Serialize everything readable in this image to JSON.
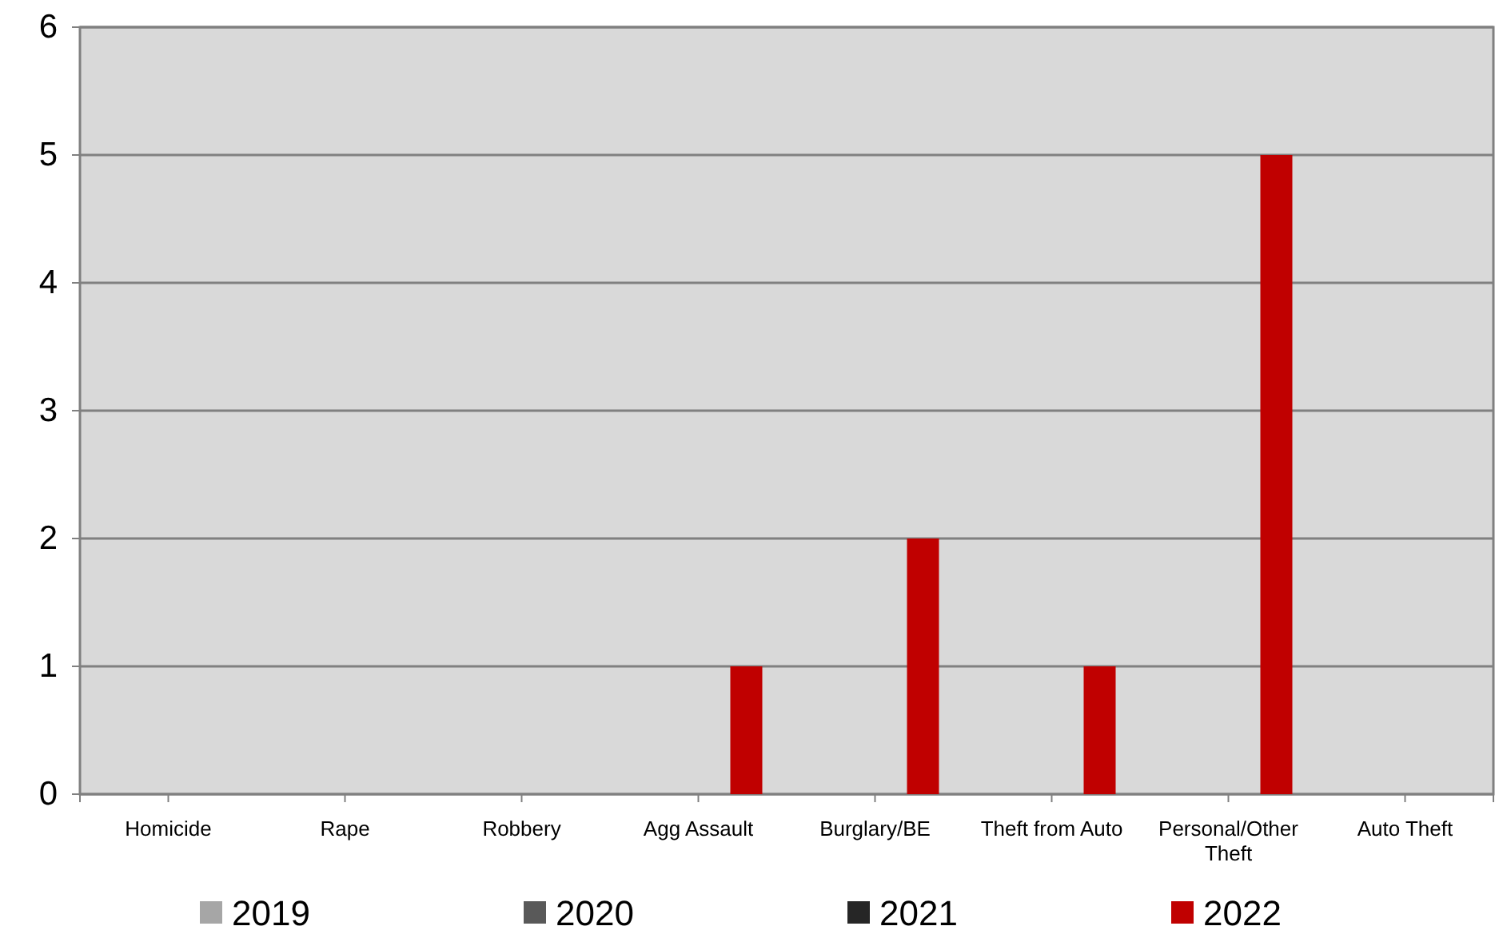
{
  "chart_data": {
    "type": "bar",
    "categories": [
      "Homicide",
      "Rape",
      "Robbery",
      "Agg Assault",
      "Burglary/BE",
      "Theft from Auto",
      "Personal/Other Theft",
      "Auto Theft"
    ],
    "series": [
      {
        "name": "2019",
        "color": "#a6a6a6",
        "values": [
          0,
          0,
          0,
          0,
          0,
          0,
          0,
          0
        ]
      },
      {
        "name": "2020",
        "color": "#595959",
        "values": [
          0,
          0,
          0,
          0,
          0,
          0,
          0,
          0
        ]
      },
      {
        "name": "2021",
        "color": "#262626",
        "values": [
          0,
          0,
          0,
          0,
          0,
          0,
          0,
          0
        ]
      },
      {
        "name": "2022",
        "color": "#c00000",
        "values": [
          0,
          0,
          0,
          1,
          2,
          1,
          5,
          0
        ]
      }
    ],
    "ylim": [
      0,
      6
    ],
    "yticks": [
      0,
      1,
      2,
      3,
      4,
      5,
      6
    ],
    "grid": "y",
    "legend": "bottom"
  }
}
